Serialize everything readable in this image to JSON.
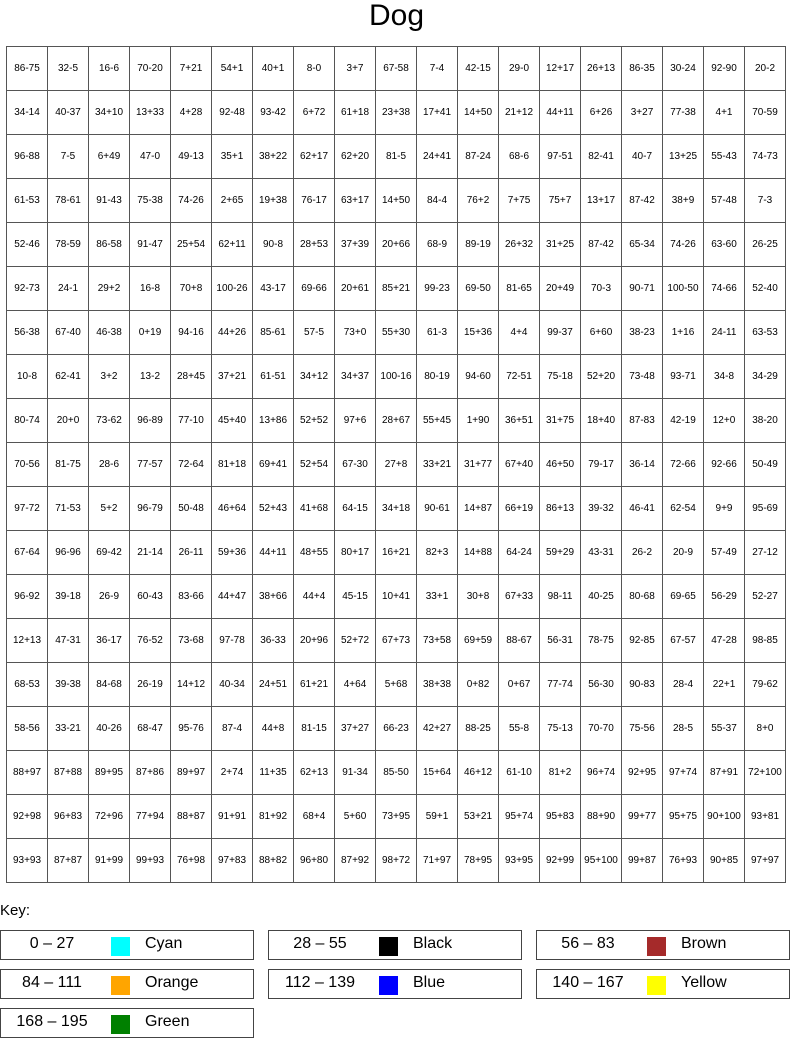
{
  "title": "Dog",
  "grid": [
    [
      "86-75",
      "32-5",
      "16-6",
      "70-20",
      "7+21",
      "54+1",
      "40+1",
      "8-0",
      "3+7",
      "67-58",
      "7-4",
      "42-15",
      "29-0",
      "12+17",
      "26+13",
      "86-35",
      "30-24",
      "92-90",
      "20-2"
    ],
    [
      "34-14",
      "40-37",
      "34+10",
      "13+33",
      "4+28",
      "92-48",
      "93-42",
      "6+72",
      "61+18",
      "23+38",
      "17+41",
      "14+50",
      "21+12",
      "44+11",
      "6+26",
      "3+27",
      "77-38",
      "4+1",
      "70-59"
    ],
    [
      "96-88",
      "7-5",
      "6+49",
      "47-0",
      "49-13",
      "35+1",
      "38+22",
      "62+17",
      "62+20",
      "81-5",
      "24+41",
      "87-24",
      "68-6",
      "97-51",
      "82-41",
      "40-7",
      "13+25",
      "55-43",
      "74-73"
    ],
    [
      "61-53",
      "78-61",
      "91-43",
      "75-38",
      "74-26",
      "2+65",
      "19+38",
      "76-17",
      "63+17",
      "14+50",
      "84-4",
      "76+2",
      "7+75",
      "75+7",
      "13+17",
      "87-42",
      "38+9",
      "57-48",
      "7-3"
    ],
    [
      "52-46",
      "78-59",
      "86-58",
      "91-47",
      "25+54",
      "62+11",
      "90-8",
      "28+53",
      "37+39",
      "20+66",
      "68-9",
      "89-19",
      "26+32",
      "31+25",
      "87-42",
      "65-34",
      "74-26",
      "63-60",
      "26-25"
    ],
    [
      "92-73",
      "24-1",
      "29+2",
      "16-8",
      "70+8",
      "100-26",
      "43-17",
      "69-66",
      "20+61",
      "85+21",
      "99-23",
      "69-50",
      "81-65",
      "20+49",
      "70-3",
      "90-71",
      "100-50",
      "74-66",
      "52-40"
    ],
    [
      "56-38",
      "67-40",
      "46-38",
      "0+19",
      "94-16",
      "44+26",
      "85-61",
      "57-5",
      "73+0",
      "55+30",
      "61-3",
      "15+36",
      "4+4",
      "99-37",
      "6+60",
      "38-23",
      "1+16",
      "24-11",
      "63-53"
    ],
    [
      "10-8",
      "62-41",
      "3+2",
      "13-2",
      "28+45",
      "37+21",
      "61-51",
      "34+12",
      "34+37",
      "100-16",
      "80-19",
      "94-60",
      "72-51",
      "75-18",
      "52+20",
      "73-48",
      "93-71",
      "34-8",
      "34-29"
    ],
    [
      "80-74",
      "20+0",
      "73-62",
      "96-89",
      "77-10",
      "45+40",
      "13+86",
      "52+52",
      "97+6",
      "28+67",
      "55+45",
      "1+90",
      "36+51",
      "31+75",
      "18+40",
      "87-83",
      "42-19",
      "12+0",
      "38-20"
    ],
    [
      "70-56",
      "81-75",
      "28-6",
      "77-57",
      "72-64",
      "81+18",
      "69+41",
      "52+54",
      "67-30",
      "27+8",
      "33+21",
      "31+77",
      "67+40",
      "46+50",
      "79-17",
      "36-14",
      "72-66",
      "92-66",
      "50-49"
    ],
    [
      "97-72",
      "71-53",
      "5+2",
      "96-79",
      "50-48",
      "46+64",
      "52+43",
      "41+68",
      "64-15",
      "34+18",
      "90-61",
      "14+87",
      "66+19",
      "86+13",
      "39-32",
      "46-41",
      "62-54",
      "9+9",
      "95-69"
    ],
    [
      "67-64",
      "96-96",
      "69-42",
      "21-14",
      "26-11",
      "59+36",
      "44+11",
      "48+55",
      "80+17",
      "16+21",
      "82+3",
      "14+88",
      "64-24",
      "59+29",
      "43-31",
      "26-2",
      "20-9",
      "57-49",
      "27-12"
    ],
    [
      "96-92",
      "39-18",
      "26-9",
      "60-43",
      "83-66",
      "44+47",
      "38+66",
      "44+4",
      "45-15",
      "10+41",
      "33+1",
      "30+8",
      "67+33",
      "98-11",
      "40-25",
      "80-68",
      "69-65",
      "56-29",
      "52-27"
    ],
    [
      "12+13",
      "47-31",
      "36-17",
      "76-52",
      "73-68",
      "97-78",
      "36-33",
      "20+96",
      "52+72",
      "67+73",
      "73+58",
      "69+59",
      "88-67",
      "56-31",
      "78-75",
      "92-85",
      "67-57",
      "47-28",
      "98-85"
    ],
    [
      "68-53",
      "39-38",
      "84-68",
      "26-19",
      "14+12",
      "40-34",
      "24+51",
      "61+21",
      "4+64",
      "5+68",
      "38+38",
      "0+82",
      "0+67",
      "77-74",
      "56-30",
      "90-83",
      "28-4",
      "22+1",
      "79-62"
    ],
    [
      "58-56",
      "33-21",
      "40-26",
      "68-47",
      "95-76",
      "87-4",
      "44+8",
      "81-15",
      "37+27",
      "66-23",
      "42+27",
      "88-25",
      "55-8",
      "75-13",
      "70-70",
      "75-56",
      "28-5",
      "55-37",
      "8+0"
    ],
    [
      "88+97",
      "87+88",
      "89+95",
      "87+86",
      "89+97",
      "2+74",
      "11+35",
      "62+13",
      "91-34",
      "85-50",
      "15+64",
      "46+12",
      "61-10",
      "81+2",
      "96+74",
      "92+95",
      "97+74",
      "87+91",
      "72+100"
    ],
    [
      "92+98",
      "96+83",
      "72+96",
      "77+94",
      "88+87",
      "91+91",
      "81+92",
      "68+4",
      "5+60",
      "73+95",
      "59+1",
      "53+21",
      "95+74",
      "95+83",
      "88+90",
      "99+77",
      "95+75",
      "90+100",
      "93+81"
    ],
    [
      "93+93",
      "87+87",
      "91+99",
      "99+93",
      "76+98",
      "97+83",
      "88+82",
      "96+80",
      "87+92",
      "98+72",
      "71+97",
      "78+95",
      "93+95",
      "92+99",
      "95+100",
      "99+87",
      "76+93",
      "90+85",
      "97+97"
    ]
  ],
  "key": {
    "label": "Key:",
    "items": [
      {
        "range": "0 – 27",
        "color_name": "Cyan",
        "color": "#00FFFF"
      },
      {
        "range": "28 – 55",
        "color_name": "Black",
        "color": "#000000"
      },
      {
        "range": "56 – 83",
        "color_name": "Brown",
        "color": "#A52A2A"
      },
      {
        "range": "84 – 111",
        "color_name": "Orange",
        "color": "#FFA500"
      },
      {
        "range": "112 – 139",
        "color_name": "Blue",
        "color": "#0000FF"
      },
      {
        "range": "140 – 167",
        "color_name": "Yellow",
        "color": "#FFFF00"
      },
      {
        "range": "168 – 195",
        "color_name": "Green",
        "color": "#008000"
      }
    ]
  }
}
